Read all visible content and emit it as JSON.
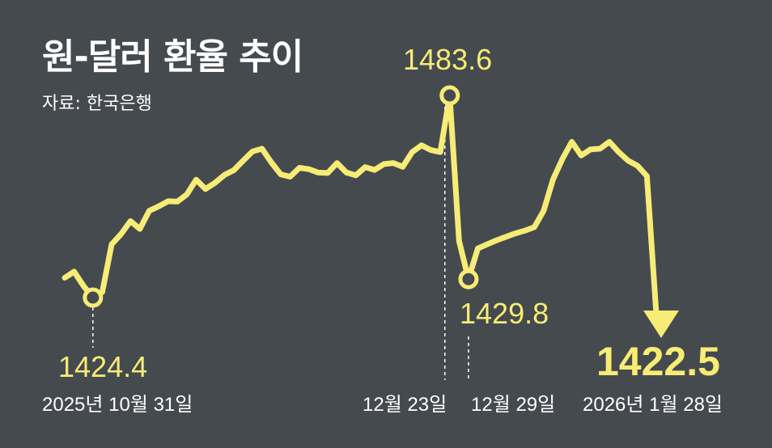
{
  "title": "원-달러 환율 추이",
  "source": "자료: 한국은행",
  "colors": {
    "background": "#454a4f",
    "line": "#f7ec75",
    "text": "#ffffff"
  },
  "chart_data": {
    "type": "line",
    "title": "원-달러 환율 추이",
    "xlabel": "",
    "ylabel": "",
    "grid": false,
    "series": [
      {
        "values": [
          1430.2,
          1432.0,
          1427.8,
          1424.4,
          1426.0,
          1440.0,
          1443.0,
          1446.8,
          1444.5,
          1449.8,
          1451.1,
          1452.6,
          1452.5,
          1454.6,
          1458.9,
          1456.2,
          1458.0,
          1460.3,
          1461.7,
          1464.5,
          1467.2,
          1468.0,
          1464.0,
          1460.5,
          1459.8,
          1462.4,
          1462.0,
          1461.0,
          1460.9,
          1463.8,
          1461.0,
          1460.2,
          1462.6,
          1461.8,
          1463.5,
          1463.8,
          1462.7,
          1467.0,
          1469.0,
          1467.6,
          1467.0,
          1483.6,
          1441.0,
          1429.8,
          1438.8,
          1440.0,
          1441.2,
          1442.2,
          1443.2,
          1444.0,
          1445.0,
          1449.8,
          1459.0,
          1465.0,
          1470.0,
          1466.0,
          1467.8,
          1468.0,
          1470.0,
          1467.0,
          1464.5,
          1463.0,
          1460.0,
          1422.5
        ]
      }
    ],
    "annotations": [
      {
        "label": "1424.4",
        "date": "2025년 10월 31일",
        "value": 1424.4
      },
      {
        "label": "1483.6",
        "date": "12월 23일",
        "value": 1483.6
      },
      {
        "label": "1429.8",
        "date": "12월 29일",
        "value": 1429.8
      },
      {
        "label": "1422.5",
        "date": "2026년 1월 28일",
        "value": 1422.5
      }
    ]
  }
}
